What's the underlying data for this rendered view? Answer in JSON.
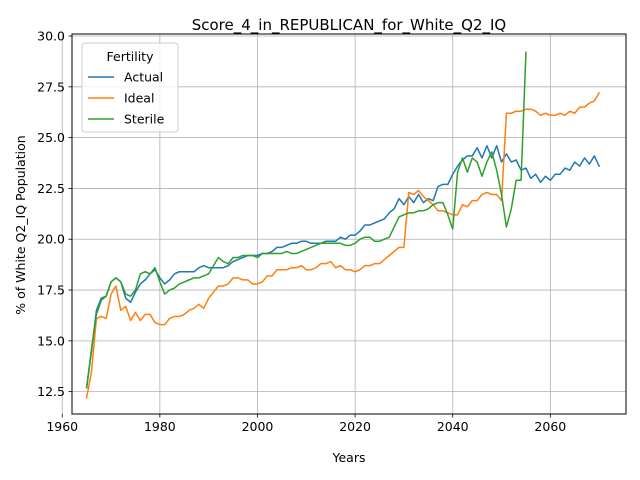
{
  "chart_data": {
    "type": "line",
    "title": "Score_4_in_REPUBLICAN_for_White_Q2_IQ",
    "xlabel": "Years",
    "ylabel": "% of White Q2_IQ Population",
    "xlim": [
      1962,
      2075.5
    ],
    "ylim": [
      11.4,
      30.1
    ],
    "xticks": [
      1960,
      1980,
      2000,
      2020,
      2040,
      2060
    ],
    "yticks": [
      12.5,
      15.0,
      17.5,
      20.0,
      22.5,
      25.0,
      27.5,
      30.0
    ],
    "ytick_labels": [
      "12.5",
      "15.0",
      "17.5",
      "20.0",
      "22.5",
      "25.0",
      "27.5",
      "30.0"
    ],
    "grid": true,
    "legend": {
      "title": "Fertility",
      "placement": "top-left"
    },
    "series": [
      {
        "name": "Actual",
        "color": "#1f77b4",
        "x": [
          1965,
          1966,
          1967,
          1968,
          1969,
          1970,
          1971,
          1972,
          1973,
          1974,
          1975,
          1976,
          1977,
          1978,
          1979,
          1980,
          1981,
          1982,
          1983,
          1984,
          1985,
          1986,
          1987,
          1988,
          1989,
          1990,
          1991,
          1992,
          1993,
          1994,
          1995,
          1996,
          1997,
          1998,
          1999,
          2000,
          2001,
          2002,
          2003,
          2004,
          2005,
          2006,
          2007,
          2008,
          2009,
          2010,
          2011,
          2012,
          2013,
          2014,
          2015,
          2016,
          2017,
          2018,
          2019,
          2020,
          2021,
          2022,
          2023,
          2024,
          2025,
          2026,
          2027,
          2028,
          2029,
          2030,
          2031,
          2032,
          2033,
          2034,
          2035,
          2036,
          2037,
          2038,
          2039,
          2040,
          2041,
          2042,
          2043,
          2044,
          2045,
          2046,
          2047,
          2048,
          2049,
          2050,
          2051,
          2052,
          2053,
          2054,
          2055,
          2056,
          2057,
          2058,
          2059,
          2060,
          2061,
          2062,
          2063,
          2064,
          2065,
          2066,
          2067,
          2068,
          2069,
          2070
        ],
        "y": [
          12.7,
          14.5,
          16.5,
          17.1,
          17.2,
          17.9,
          18.1,
          17.9,
          17.1,
          16.9,
          17.4,
          17.8,
          18.0,
          18.3,
          18.5,
          18.1,
          17.8,
          18.0,
          18.3,
          18.4,
          18.4,
          18.4,
          18.4,
          18.6,
          18.7,
          18.6,
          18.6,
          18.6,
          18.6,
          18.7,
          18.9,
          19.0,
          19.1,
          19.2,
          19.2,
          19.2,
          19.3,
          19.3,
          19.4,
          19.6,
          19.6,
          19.7,
          19.8,
          19.8,
          19.9,
          19.9,
          19.8,
          19.8,
          19.8,
          19.9,
          19.9,
          19.9,
          20.1,
          20.0,
          20.2,
          20.2,
          20.4,
          20.7,
          20.7,
          20.8,
          20.9,
          21.0,
          21.3,
          21.5,
          22.0,
          21.7,
          22.1,
          21.8,
          22.2,
          21.8,
          22.0,
          21.9,
          22.6,
          22.7,
          22.7,
          23.2,
          23.6,
          23.9,
          24.1,
          24.1,
          24.5,
          24.0,
          24.6,
          24.0,
          24.6,
          23.8,
          24.2,
          23.8,
          23.9,
          23.4,
          23.5,
          23.0,
          23.2,
          22.8,
          23.1,
          22.9,
          23.2,
          23.2,
          23.5,
          23.4,
          23.8,
          23.6,
          24.0,
          23.7,
          24.1,
          23.6
        ]
      },
      {
        "name": "Ideal",
        "color": "#ff7f0e",
        "x": [
          1965,
          1966,
          1967,
          1968,
          1969,
          1970,
          1971,
          1972,
          1973,
          1974,
          1975,
          1976,
          1977,
          1978,
          1979,
          1980,
          1981,
          1982,
          1983,
          1984,
          1985,
          1986,
          1987,
          1988,
          1989,
          1990,
          1991,
          1992,
          1993,
          1994,
          1995,
          1996,
          1997,
          1998,
          1999,
          2000,
          2001,
          2002,
          2003,
          2004,
          2005,
          2006,
          2007,
          2008,
          2009,
          2010,
          2011,
          2012,
          2013,
          2014,
          2015,
          2016,
          2017,
          2018,
          2019,
          2020,
          2021,
          2022,
          2023,
          2024,
          2025,
          2026,
          2027,
          2028,
          2029,
          2030,
          2031,
          2032,
          2033,
          2034,
          2035,
          2036,
          2037,
          2038,
          2039,
          2040,
          2041,
          2042,
          2043,
          2044,
          2045,
          2046,
          2047,
          2048,
          2049,
          2050,
          2051,
          2052,
          2053,
          2054,
          2055,
          2056,
          2057,
          2058,
          2059,
          2060,
          2061,
          2062,
          2063,
          2064,
          2065,
          2066,
          2067,
          2068,
          2069,
          2070
        ],
        "y": [
          12.2,
          13.5,
          16.1,
          16.2,
          16.1,
          17.3,
          17.7,
          16.5,
          16.7,
          16.0,
          16.4,
          16.0,
          16.3,
          16.3,
          15.9,
          15.8,
          15.8,
          16.1,
          16.2,
          16.2,
          16.3,
          16.5,
          16.6,
          16.8,
          16.6,
          17.1,
          17.4,
          17.7,
          17.7,
          17.8,
          18.1,
          18.1,
          18.0,
          18.0,
          17.8,
          17.8,
          17.9,
          18.2,
          18.2,
          18.5,
          18.5,
          18.5,
          18.6,
          18.6,
          18.7,
          18.5,
          18.5,
          18.6,
          18.8,
          18.8,
          18.9,
          18.6,
          18.7,
          18.5,
          18.5,
          18.4,
          18.5,
          18.7,
          18.7,
          18.8,
          18.8,
          19.0,
          19.2,
          19.4,
          19.6,
          19.6,
          22.3,
          22.2,
          22.4,
          22.1,
          21.9,
          21.7,
          21.4,
          21.4,
          21.3,
          21.2,
          21.2,
          21.7,
          21.6,
          21.9,
          21.9,
          22.2,
          22.3,
          22.2,
          22.2,
          21.9,
          26.2,
          26.2,
          26.3,
          26.3,
          26.4,
          26.4,
          26.3,
          26.1,
          26.2,
          26.1,
          26.1,
          26.2,
          26.1,
          26.3,
          26.2,
          26.5,
          26.5,
          26.7,
          26.8,
          27.2
        ]
      },
      {
        "name": "Sterile",
        "color": "#2ca02c",
        "x": [
          1965,
          1966,
          1967,
          1968,
          1969,
          1970,
          1971,
          1972,
          1973,
          1974,
          1975,
          1976,
          1977,
          1978,
          1979,
          1980,
          1981,
          1982,
          1983,
          1984,
          1985,
          1986,
          1987,
          1988,
          1989,
          1990,
          1991,
          1992,
          1993,
          1994,
          1995,
          1996,
          1997,
          1998,
          1999,
          2000,
          2001,
          2002,
          2003,
          2004,
          2005,
          2006,
          2007,
          2008,
          2009,
          2010,
          2011,
          2012,
          2013,
          2014,
          2015,
          2016,
          2017,
          2018,
          2019,
          2020,
          2021,
          2022,
          2023,
          2024,
          2025,
          2026,
          2027,
          2028,
          2029,
          2030,
          2031,
          2032,
          2033,
          2034,
          2035,
          2036,
          2037,
          2038,
          2039,
          2040,
          2041,
          2042,
          2043,
          2044,
          2045,
          2046,
          2047,
          2048,
          2049,
          2050,
          2051,
          2052,
          2053,
          2054,
          2055
        ],
        "y": [
          12.7,
          14.6,
          16.3,
          17.0,
          17.2,
          17.9,
          18.1,
          17.9,
          17.3,
          17.2,
          17.5,
          18.3,
          18.4,
          18.3,
          18.6,
          17.9,
          17.3,
          17.5,
          17.6,
          17.8,
          17.9,
          18.0,
          18.1,
          18.1,
          18.2,
          18.3,
          18.7,
          19.1,
          18.9,
          18.8,
          19.1,
          19.1,
          19.2,
          19.2,
          19.2,
          19.1,
          19.3,
          19.3,
          19.3,
          19.3,
          19.3,
          19.4,
          19.3,
          19.3,
          19.4,
          19.5,
          19.6,
          19.7,
          19.8,
          19.8,
          19.8,
          19.8,
          19.8,
          19.7,
          19.7,
          19.8,
          20.0,
          20.1,
          20.1,
          19.9,
          19.9,
          20.0,
          20.1,
          20.6,
          21.1,
          21.2,
          21.3,
          21.3,
          21.4,
          21.4,
          21.5,
          21.7,
          21.8,
          21.8,
          21.2,
          20.5,
          23.3,
          24.0,
          23.3,
          24.0,
          23.8,
          23.1,
          23.8,
          24.3,
          23.4,
          22.2,
          20.6,
          21.5,
          22.9,
          22.9,
          29.2
        ]
      }
    ]
  }
}
